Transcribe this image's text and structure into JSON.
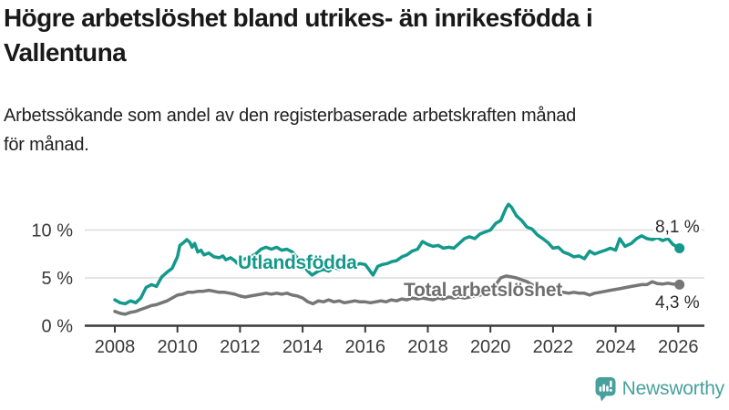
{
  "header": {
    "title_line1": "Högre arbetslöshet bland utrikes- än inrikesfödda i",
    "title_line2": "Vallentuna",
    "subtitle_line1": "Arbetssökande som andel av den registerbaserade arbetskraften månad",
    "subtitle_line2": "för månad."
  },
  "footer": {
    "brand": "Newsworthy"
  },
  "colors": {
    "teal": "#13998b",
    "gray": "#767676",
    "axis": "#3a3a3a",
    "grid": "#dcdcdc",
    "tick_text": "#3a3a3a",
    "logo": "#48a09d"
  },
  "chart_data": {
    "type": "line",
    "title": "Högre arbetslöshet bland utrikes- än inrikesfödda i Vallentuna",
    "subtitle": "Arbetssökande som andel av den registerbaserade arbetskraften månad för månad.",
    "xlim": [
      2008,
      2026.8
    ],
    "ylim": [
      0,
      13
    ],
    "grid": "horizontal",
    "x_ticks": [
      "2008",
      "2010",
      "2012",
      "2014",
      "2016",
      "2018",
      "2020",
      "2022",
      "2024",
      "2026"
    ],
    "y_ticks": [
      {
        "value": 0,
        "label": "0 %"
      },
      {
        "value": 5,
        "label": "5 %"
      },
      {
        "value": 10,
        "label": "10 %"
      }
    ],
    "series": [
      {
        "name": "Utlandsfödda",
        "end_label": "8,1 %",
        "end_value": 8.1,
        "color": "#13998b",
        "points": [
          [
            2008.0,
            2.7
          ],
          [
            2008.17,
            2.4
          ],
          [
            2008.33,
            2.3
          ],
          [
            2008.5,
            2.6
          ],
          [
            2008.67,
            2.4
          ],
          [
            2008.83,
            2.9
          ],
          [
            2009.0,
            4.0
          ],
          [
            2009.17,
            4.3
          ],
          [
            2009.33,
            4.1
          ],
          [
            2009.5,
            5.1
          ],
          [
            2009.67,
            5.6
          ],
          [
            2009.83,
            6.0
          ],
          [
            2010.0,
            7.2
          ],
          [
            2010.08,
            8.4
          ],
          [
            2010.2,
            8.7
          ],
          [
            2010.3,
            9.0
          ],
          [
            2010.4,
            8.7
          ],
          [
            2010.47,
            8.2
          ],
          [
            2010.55,
            8.6
          ],
          [
            2010.65,
            7.7
          ],
          [
            2010.75,
            7.9
          ],
          [
            2010.85,
            7.4
          ],
          [
            2011.0,
            7.6
          ],
          [
            2011.17,
            7.2
          ],
          [
            2011.33,
            7.1
          ],
          [
            2011.45,
            7.3
          ],
          [
            2011.55,
            6.9
          ],
          [
            2011.7,
            7.1
          ],
          [
            2011.83,
            6.8
          ],
          [
            2011.92,
            6.5
          ],
          [
            2012.0,
            6.8
          ],
          [
            2012.17,
            7.0
          ],
          [
            2012.33,
            7.2
          ],
          [
            2012.5,
            7.5
          ],
          [
            2012.67,
            8.0
          ],
          [
            2012.83,
            8.2
          ],
          [
            2013.0,
            8.0
          ],
          [
            2013.17,
            8.2
          ],
          [
            2013.33,
            7.9
          ],
          [
            2013.5,
            8.0
          ],
          [
            2013.67,
            7.7
          ],
          [
            2013.83,
            7.1
          ],
          [
            2014.0,
            6.4
          ],
          [
            2014.17,
            5.7
          ],
          [
            2014.3,
            5.3
          ],
          [
            2014.5,
            5.7
          ],
          [
            2014.67,
            5.9
          ],
          [
            2014.83,
            5.7
          ],
          [
            2015.0,
            6.1
          ],
          [
            2015.17,
            5.9
          ],
          [
            2015.33,
            6.2
          ],
          [
            2015.5,
            6.0
          ],
          [
            2015.67,
            6.3
          ],
          [
            2015.83,
            6.5
          ],
          [
            2016.0,
            6.4
          ],
          [
            2016.25,
            5.3
          ],
          [
            2016.4,
            6.2
          ],
          [
            2016.55,
            6.4
          ],
          [
            2016.7,
            6.5
          ],
          [
            2016.85,
            6.7
          ],
          [
            2017.0,
            6.8
          ],
          [
            2017.17,
            7.2
          ],
          [
            2017.33,
            7.4
          ],
          [
            2017.5,
            7.8
          ],
          [
            2017.67,
            8.0
          ],
          [
            2017.83,
            8.8
          ],
          [
            2018.0,
            8.5
          ],
          [
            2018.17,
            8.3
          ],
          [
            2018.33,
            8.4
          ],
          [
            2018.5,
            8.1
          ],
          [
            2018.67,
            8.2
          ],
          [
            2018.83,
            8.1
          ],
          [
            2019.0,
            8.6
          ],
          [
            2019.17,
            9.1
          ],
          [
            2019.33,
            9.3
          ],
          [
            2019.5,
            9.1
          ],
          [
            2019.67,
            9.6
          ],
          [
            2019.83,
            9.8
          ],
          [
            2020.0,
            10.0
          ],
          [
            2020.17,
            10.7
          ],
          [
            2020.33,
            11.0
          ],
          [
            2020.5,
            12.3
          ],
          [
            2020.58,
            12.7
          ],
          [
            2020.67,
            12.4
          ],
          [
            2020.83,
            11.5
          ],
          [
            2021.0,
            11.0
          ],
          [
            2021.17,
            10.3
          ],
          [
            2021.33,
            10.1
          ],
          [
            2021.5,
            9.5
          ],
          [
            2021.67,
            9.1
          ],
          [
            2021.83,
            8.7
          ],
          [
            2022.0,
            8.1
          ],
          [
            2022.17,
            8.2
          ],
          [
            2022.33,
            7.7
          ],
          [
            2022.5,
            7.5
          ],
          [
            2022.67,
            7.2
          ],
          [
            2022.83,
            7.3
          ],
          [
            2023.0,
            7.0
          ],
          [
            2023.17,
            7.8
          ],
          [
            2023.33,
            7.5
          ],
          [
            2023.5,
            7.7
          ],
          [
            2023.67,
            7.9
          ],
          [
            2023.83,
            8.1
          ],
          [
            2024.0,
            7.9
          ],
          [
            2024.13,
            9.1
          ],
          [
            2024.3,
            8.3
          ],
          [
            2024.5,
            8.6
          ],
          [
            2024.67,
            9.1
          ],
          [
            2024.83,
            9.4
          ],
          [
            2025.0,
            9.1
          ],
          [
            2025.17,
            9.0
          ],
          [
            2025.33,
            9.2
          ],
          [
            2025.5,
            8.9
          ],
          [
            2025.67,
            9.1
          ],
          [
            2025.83,
            8.5
          ],
          [
            2026.04,
            8.1
          ]
        ]
      },
      {
        "name": "Total arbetslöshet",
        "end_label": "4,3 %",
        "end_value": 4.3,
        "color": "#767676",
        "points": [
          [
            2008.0,
            1.5
          ],
          [
            2008.17,
            1.3
          ],
          [
            2008.33,
            1.2
          ],
          [
            2008.5,
            1.4
          ],
          [
            2008.67,
            1.5
          ],
          [
            2008.83,
            1.7
          ],
          [
            2009.0,
            1.9
          ],
          [
            2009.17,
            2.1
          ],
          [
            2009.33,
            2.2
          ],
          [
            2009.5,
            2.4
          ],
          [
            2009.67,
            2.6
          ],
          [
            2009.83,
            2.9
          ],
          [
            2010.0,
            3.2
          ],
          [
            2010.17,
            3.3
          ],
          [
            2010.33,
            3.5
          ],
          [
            2010.5,
            3.5
          ],
          [
            2010.67,
            3.6
          ],
          [
            2010.83,
            3.6
          ],
          [
            2011.0,
            3.7
          ],
          [
            2011.17,
            3.6
          ],
          [
            2011.33,
            3.5
          ],
          [
            2011.5,
            3.5
          ],
          [
            2011.67,
            3.4
          ],
          [
            2011.83,
            3.3
          ],
          [
            2012.0,
            3.1
          ],
          [
            2012.17,
            3.0
          ],
          [
            2012.33,
            3.1
          ],
          [
            2012.5,
            3.2
          ],
          [
            2012.67,
            3.3
          ],
          [
            2012.83,
            3.4
          ],
          [
            2013.0,
            3.3
          ],
          [
            2013.17,
            3.4
          ],
          [
            2013.33,
            3.3
          ],
          [
            2013.5,
            3.4
          ],
          [
            2013.67,
            3.2
          ],
          [
            2013.83,
            3.1
          ],
          [
            2014.0,
            2.9
          ],
          [
            2014.17,
            2.5
          ],
          [
            2014.33,
            2.3
          ],
          [
            2014.5,
            2.6
          ],
          [
            2014.67,
            2.5
          ],
          [
            2014.83,
            2.7
          ],
          [
            2015.0,
            2.5
          ],
          [
            2015.17,
            2.6
          ],
          [
            2015.33,
            2.4
          ],
          [
            2015.5,
            2.5
          ],
          [
            2015.67,
            2.6
          ],
          [
            2015.83,
            2.5
          ],
          [
            2016.0,
            2.5
          ],
          [
            2016.17,
            2.4
          ],
          [
            2016.33,
            2.5
          ],
          [
            2016.5,
            2.6
          ],
          [
            2016.67,
            2.5
          ],
          [
            2016.83,
            2.7
          ],
          [
            2017.0,
            2.6
          ],
          [
            2017.17,
            2.8
          ],
          [
            2017.33,
            2.7
          ],
          [
            2017.5,
            2.9
          ],
          [
            2017.67,
            2.8
          ],
          [
            2017.83,
            2.9
          ],
          [
            2018.0,
            2.8
          ],
          [
            2018.17,
            2.7
          ],
          [
            2018.33,
            2.9
          ],
          [
            2018.5,
            2.8
          ],
          [
            2018.67,
            3.0
          ],
          [
            2018.83,
            2.9
          ],
          [
            2019.0,
            3.0
          ],
          [
            2019.17,
            2.9
          ],
          [
            2019.33,
            3.0
          ],
          [
            2019.5,
            3.1
          ],
          [
            2019.67,
            3.2
          ],
          [
            2019.83,
            3.4
          ],
          [
            2020.0,
            3.4
          ],
          [
            2020.17,
            4.3
          ],
          [
            2020.33,
            5.0
          ],
          [
            2020.5,
            5.2
          ],
          [
            2020.67,
            5.1
          ],
          [
            2020.83,
            5.0
          ],
          [
            2021.0,
            4.8
          ],
          [
            2021.17,
            4.6
          ],
          [
            2021.33,
            4.3
          ],
          [
            2021.5,
            4.1
          ],
          [
            2021.67,
            3.9
          ],
          [
            2021.83,
            3.7
          ],
          [
            2022.0,
            3.6
          ],
          [
            2022.17,
            3.5
          ],
          [
            2022.33,
            3.5
          ],
          [
            2022.5,
            3.4
          ],
          [
            2022.67,
            3.5
          ],
          [
            2022.83,
            3.4
          ],
          [
            2023.0,
            3.4
          ],
          [
            2023.17,
            3.2
          ],
          [
            2023.33,
            3.4
          ],
          [
            2023.5,
            3.5
          ],
          [
            2023.67,
            3.6
          ],
          [
            2023.83,
            3.7
          ],
          [
            2024.0,
            3.8
          ],
          [
            2024.17,
            3.9
          ],
          [
            2024.33,
            4.0
          ],
          [
            2024.5,
            4.1
          ],
          [
            2024.67,
            4.2
          ],
          [
            2024.83,
            4.3
          ],
          [
            2025.0,
            4.3
          ],
          [
            2025.17,
            4.6
          ],
          [
            2025.33,
            4.4
          ],
          [
            2025.5,
            4.35
          ],
          [
            2025.67,
            4.45
          ],
          [
            2025.83,
            4.35
          ],
          [
            2026.04,
            4.3
          ]
        ]
      }
    ]
  }
}
